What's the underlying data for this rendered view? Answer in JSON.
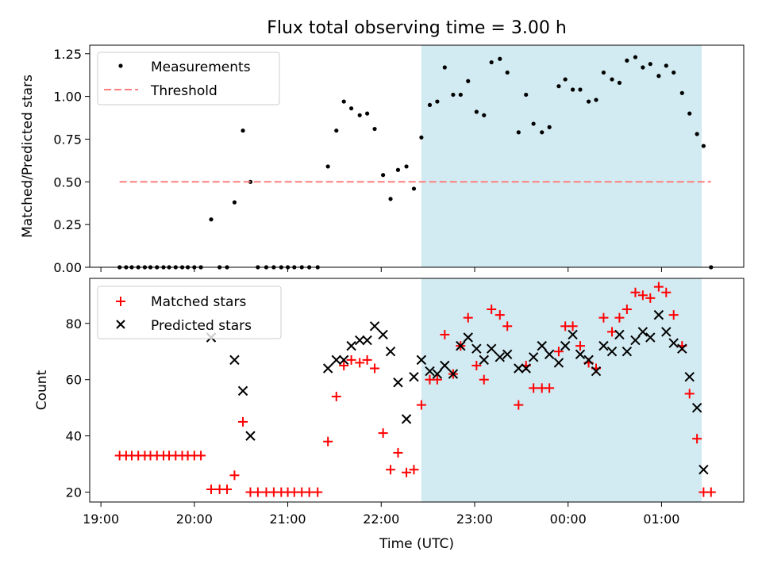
{
  "title": "Flux total observing time = 3.00 h",
  "colors": {
    "measurement": "#000000",
    "threshold": "#ff7f7f",
    "matched": "#ff0000",
    "predicted": "#000000",
    "highlight": "#add8e6"
  },
  "chart_data": [
    {
      "type": "scatter",
      "panel": "top",
      "xlabel": "",
      "ylabel": "Matched/Predicted stars",
      "x_range_hours": [
        18.88,
        25.88
      ],
      "ylim": [
        0,
        1.3
      ],
      "yticks": [
        "0.00",
        "0.25",
        "0.50",
        "0.75",
        "1.00",
        "1.25"
      ],
      "highlight_span_hours": [
        22.43,
        25.43
      ],
      "legend_position": "top-left",
      "series": [
        {
          "name": "Measurements",
          "marker": "dot",
          "x_hours": [
            19.2,
            19.27,
            19.33,
            19.4,
            19.47,
            19.53,
            19.6,
            19.67,
            19.73,
            19.8,
            19.87,
            19.93,
            20.0,
            20.07,
            20.18,
            20.27,
            20.35,
            20.43,
            20.52,
            20.6,
            20.68,
            20.77,
            20.85,
            20.93,
            21.0,
            21.07,
            21.15,
            21.23,
            21.32,
            21.43,
            21.52,
            21.6,
            21.68,
            21.77,
            21.85,
            21.93,
            22.02,
            22.1,
            22.18,
            22.27,
            22.35,
            22.43,
            22.52,
            22.6,
            22.68,
            22.77,
            22.85,
            22.93,
            23.02,
            23.1,
            23.18,
            23.27,
            23.35,
            23.47,
            23.55,
            23.63,
            23.72,
            23.8,
            23.9,
            23.97,
            24.05,
            24.13,
            24.22,
            24.3,
            24.38,
            24.47,
            24.55,
            24.63,
            24.72,
            24.8,
            24.88,
            24.97,
            25.05,
            25.13,
            25.22,
            25.3,
            25.38,
            25.45,
            25.53
          ],
          "y": [
            0,
            0,
            0,
            0,
            0,
            0,
            0,
            0,
            0,
            0,
            0,
            0,
            0,
            0,
            0.28,
            0,
            0,
            0.38,
            0.8,
            0.5,
            0,
            0,
            0,
            0,
            0,
            0,
            0,
            0,
            0,
            0.59,
            0.8,
            0.97,
            0.93,
            0.89,
            0.9,
            0.81,
            0.54,
            0.4,
            0.57,
            0.59,
            0.46,
            0.76,
            0.95,
            0.97,
            1.17,
            1.01,
            1.01,
            1.09,
            0.91,
            0.89,
            1.2,
            1.22,
            1.14,
            0.79,
            1.01,
            0.84,
            0.79,
            0.82,
            1.06,
            1.1,
            1.04,
            1.04,
            0.97,
            0.98,
            1.14,
            1.1,
            1.08,
            1.21,
            1.23,
            1.17,
            1.19,
            1.12,
            1.18,
            1.14,
            1.02,
            0.9,
            0.78,
            0.71,
            0
          ]
        },
        {
          "name": "Threshold",
          "marker": "dashed-line",
          "x_hours": [
            19.2,
            25.53
          ],
          "y": [
            0.5,
            0.5
          ]
        }
      ]
    },
    {
      "type": "scatter",
      "panel": "bottom",
      "xlabel": "Time (UTC)",
      "ylabel": "Count",
      "x_range_hours": [
        18.88,
        25.88
      ],
      "ylim": [
        16.5,
        96
      ],
      "yticks": [
        "20",
        "40",
        "60",
        "80"
      ],
      "xticks": [
        "19:00",
        "20:00",
        "21:00",
        "22:00",
        "23:00",
        "00:00",
        "01:00"
      ],
      "highlight_span_hours": [
        22.43,
        25.43
      ],
      "legend_position": "top-left",
      "series": [
        {
          "name": "Matched stars",
          "marker": "plus",
          "x_hours": [
            19.2,
            19.27,
            19.33,
            19.4,
            19.47,
            19.53,
            19.6,
            19.67,
            19.73,
            19.8,
            19.87,
            19.93,
            20.0,
            20.07,
            20.18,
            20.27,
            20.35,
            20.43,
            20.52,
            20.6,
            20.68,
            20.77,
            20.85,
            20.93,
            21.0,
            21.07,
            21.15,
            21.23,
            21.32,
            21.43,
            21.52,
            21.6,
            21.68,
            21.77,
            21.85,
            21.93,
            22.02,
            22.1,
            22.18,
            22.27,
            22.35,
            22.43,
            22.52,
            22.6,
            22.68,
            22.77,
            22.85,
            22.93,
            23.02,
            23.1,
            23.18,
            23.27,
            23.35,
            23.47,
            23.55,
            23.63,
            23.72,
            23.8,
            23.9,
            23.97,
            24.05,
            24.13,
            24.22,
            24.3,
            24.38,
            24.47,
            24.55,
            24.63,
            24.72,
            24.8,
            24.88,
            24.97,
            25.05,
            25.13,
            25.22,
            25.3,
            25.38,
            25.45,
            25.53
          ],
          "y": [
            33,
            33,
            33,
            33,
            33,
            33,
            33,
            33,
            33,
            33,
            33,
            33,
            33,
            33,
            21,
            21,
            21,
            26,
            45,
            20,
            20,
            20,
            20,
            20,
            20,
            20,
            20,
            20,
            20,
            38,
            54,
            65,
            67,
            66,
            67,
            64,
            41,
            28,
            34,
            27,
            28,
            51,
            60,
            60,
            76,
            62,
            72,
            82,
            65,
            60,
            85,
            83,
            79,
            51,
            65,
            57,
            57,
            57,
            70,
            79,
            79,
            72,
            66,
            64,
            82,
            77,
            82,
            85,
            91,
            90,
            89,
            93,
            91,
            83,
            72,
            55,
            39,
            20,
            20
          ]
        },
        {
          "name": "Predicted stars",
          "marker": "cross",
          "x_hours": [
            20.18,
            20.43,
            20.52,
            20.6,
            21.43,
            21.52,
            21.6,
            21.68,
            21.77,
            21.85,
            21.93,
            22.02,
            22.1,
            22.18,
            22.27,
            22.35,
            22.43,
            22.52,
            22.6,
            22.68,
            22.77,
            22.85,
            22.93,
            23.02,
            23.1,
            23.18,
            23.27,
            23.35,
            23.47,
            23.55,
            23.63,
            23.72,
            23.8,
            23.9,
            23.97,
            24.05,
            24.13,
            24.22,
            24.3,
            24.38,
            24.47,
            24.55,
            24.63,
            24.72,
            24.8,
            24.88,
            24.97,
            25.05,
            25.13,
            25.22,
            25.3,
            25.38,
            25.45
          ],
          "y": [
            75,
            67,
            56,
            40,
            64,
            67,
            67,
            72,
            74,
            74,
            79,
            76,
            70,
            59,
            46,
            61,
            67,
            63,
            62,
            65,
            62,
            72,
            75,
            71,
            67,
            71,
            68,
            69,
            64,
            64,
            68,
            72,
            69,
            66,
            72,
            76,
            69,
            67,
            63,
            72,
            70,
            76,
            70,
            74,
            77,
            75,
            83,
            77,
            73,
            71,
            61,
            50,
            28
          ]
        }
      ]
    }
  ]
}
